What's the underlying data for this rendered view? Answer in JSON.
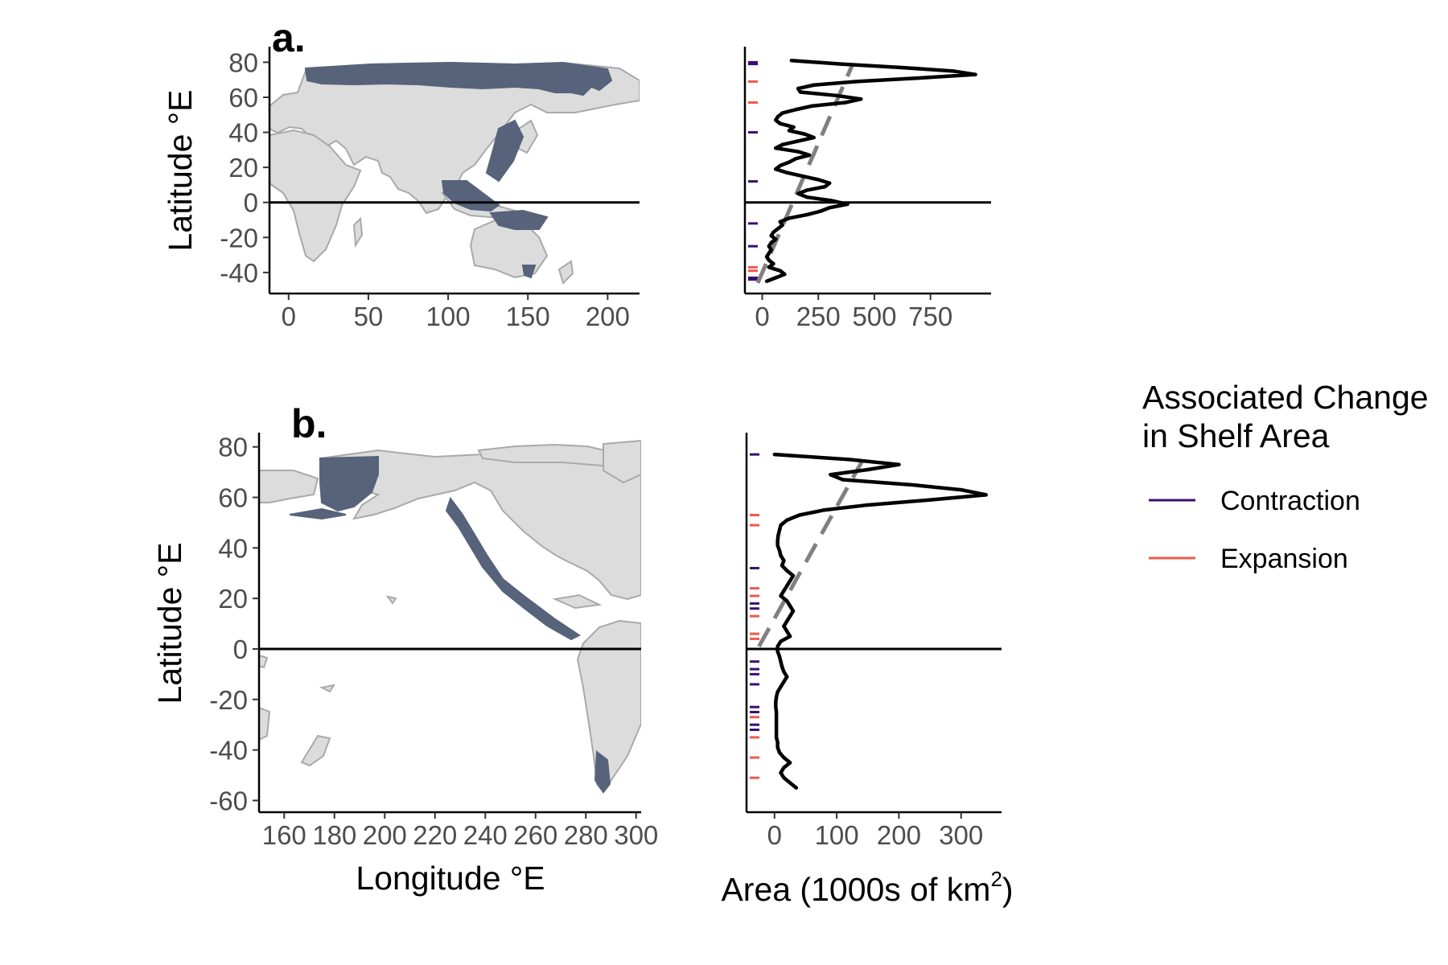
{
  "colors": {
    "shelf": "#57637a",
    "land": "#dcdcdc",
    "border": "#a9a9a9",
    "profile": "#000000",
    "trend": "#808080",
    "contraction": "#3b0f70",
    "expansion": "#ef5a4b"
  },
  "legend": {
    "title_line1": "Associated Change",
    "title_line2": "in Shelf Area",
    "items": [
      {
        "key": "contraction",
        "label": "Contraction"
      },
      {
        "key": "expansion",
        "label": "Expansion"
      }
    ]
  },
  "chart_data": [
    {
      "id": "a-map",
      "type": "map",
      "panel_label": "a.",
      "ylabel": "Latitude °E",
      "xlabel": "",
      "xlim": [
        -12,
        220
      ],
      "ylim": [
        -52,
        88
      ],
      "xticks": [
        0,
        50,
        100,
        150,
        200
      ],
      "yticks": [
        80,
        60,
        40,
        20,
        0,
        -20,
        -40
      ],
      "ytick_labels": [
        "80",
        "60",
        "40",
        "20",
        "0",
        "-20",
        "-40"
      ],
      "xtick_labels": [
        "0",
        "50",
        "100",
        "150",
        "200"
      ],
      "reference_line_y": 0
    },
    {
      "id": "a-profile",
      "type": "line",
      "xlabel": "",
      "xlim": [
        -70,
        1020
      ],
      "ylim": [
        -52,
        88
      ],
      "xticks": [
        0,
        250,
        500,
        750
      ],
      "xtick_labels": [
        "0",
        "250",
        "500",
        "750"
      ],
      "reference_line_y": 0,
      "profile": {
        "lat": [
          81,
          79,
          77,
          75,
          73,
          71,
          69,
          67,
          65,
          63,
          61,
          59,
          57,
          55,
          53,
          51,
          49,
          47,
          45,
          43,
          41,
          39,
          37,
          35,
          33,
          31,
          29,
          27,
          25,
          23,
          21,
          19,
          17,
          15,
          13,
          11,
          9,
          7,
          5,
          3,
          1,
          -1,
          -3,
          -5,
          -7,
          -9,
          -11,
          -13,
          -15,
          -17,
          -19,
          -21,
          -23,
          -25,
          -27,
          -29,
          -31,
          -33,
          -35,
          -37,
          -39,
          -41,
          -43,
          -45
        ],
        "area": [
          130,
          350,
          620,
          850,
          950,
          700,
          420,
          230,
          160,
          170,
          330,
          440,
          370,
          220,
          150,
          90,
          70,
          60,
          80,
          140,
          120,
          190,
          230,
          160,
          90,
          60,
          160,
          210,
          150,
          120,
          80,
          60,
          110,
          180,
          250,
          300,
          280,
          200,
          160,
          200,
          310,
          380,
          300,
          260,
          200,
          120,
          80,
          90,
          70,
          50,
          40,
          60,
          40,
          30,
          40,
          30,
          20,
          30,
          50,
          30,
          80,
          100,
          60,
          20
        ]
      },
      "trend": {
        "lat": [
          -46,
          78
        ],
        "area": [
          -20,
          400
        ]
      },
      "changes": [
        {
          "lat": 80,
          "type": "contraction"
        },
        {
          "lat": 79,
          "type": "contraction"
        },
        {
          "lat": 69,
          "type": "expansion"
        },
        {
          "lat": 57,
          "type": "expansion"
        },
        {
          "lat": 40,
          "type": "contraction"
        },
        {
          "lat": 12,
          "type": "contraction"
        },
        {
          "lat": -12,
          "type": "contraction"
        },
        {
          "lat": -25,
          "type": "contraction"
        },
        {
          "lat": -37,
          "type": "expansion"
        },
        {
          "lat": -39,
          "type": "expansion"
        },
        {
          "lat": -43,
          "type": "contraction"
        },
        {
          "lat": -44,
          "type": "contraction"
        }
      ]
    },
    {
      "id": "b-map",
      "type": "map",
      "panel_label": "b.",
      "ylabel": "Latitude °E",
      "xlabel": "Longitude °E",
      "xlim": [
        150,
        302
      ],
      "ylim": [
        -64,
        85
      ],
      "xticks": [
        160,
        180,
        200,
        220,
        240,
        260,
        280,
        300
      ],
      "xtick_labels": [
        "160",
        "180",
        "200",
        "220",
        "240",
        "260",
        "280",
        "300"
      ],
      "yticks": [
        80,
        60,
        40,
        20,
        0,
        -20,
        -40,
        -60
      ],
      "ytick_labels": [
        "80",
        "60",
        "40",
        "20",
        "0",
        "-20",
        "-40",
        "-60"
      ],
      "reference_line_y": 0
    },
    {
      "id": "b-profile",
      "type": "line",
      "xlabel_main": "Area (1000s of km",
      "xlabel_sup": "2",
      "xlabel_end": ")",
      "xlim": [
        -45,
        365
      ],
      "ylim": [
        -64,
        85
      ],
      "xticks": [
        0,
        100,
        200,
        300
      ],
      "xtick_labels": [
        "0",
        "100",
        "200",
        "300"
      ],
      "reference_line_y": 0,
      "profile": {
        "lat": [
          77,
          75,
          73,
          71,
          69,
          67,
          65,
          63,
          61,
          59,
          57,
          55,
          53,
          51,
          49,
          47,
          45,
          43,
          41,
          39,
          37,
          35,
          33,
          31,
          29,
          27,
          25,
          23,
          21,
          19,
          17,
          15,
          13,
          11,
          9,
          7,
          5,
          3,
          1,
          -1,
          -3,
          -5,
          -7,
          -9,
          -11,
          -13,
          -15,
          -17,
          -19,
          -21,
          -23,
          -25,
          -27,
          -29,
          -31,
          -33,
          -35,
          -37,
          -39,
          -41,
          -43,
          -45,
          -47,
          -49,
          -51,
          -53,
          -55
        ],
        "area": [
          0,
          120,
          200,
          150,
          90,
          110,
          220,
          300,
          340,
          250,
          150,
          80,
          40,
          20,
          10,
          8,
          6,
          5,
          5,
          8,
          10,
          15,
          12,
          20,
          30,
          25,
          20,
          15,
          10,
          20,
          25,
          30,
          25,
          20,
          15,
          20,
          25,
          10,
          5,
          5,
          8,
          10,
          12,
          15,
          20,
          15,
          10,
          5,
          3,
          2,
          2,
          3,
          3,
          3,
          3,
          3,
          3,
          5,
          5,
          8,
          15,
          25,
          15,
          10,
          15,
          25,
          35
        ]
      },
      "trend": {
        "lat": [
          1,
          74
        ],
        "area": [
          -25,
          140
        ]
      },
      "changes": [
        {
          "lat": 77,
          "type": "contraction"
        },
        {
          "lat": 53,
          "type": "expansion"
        },
        {
          "lat": 49,
          "type": "expansion"
        },
        {
          "lat": 32,
          "type": "contraction"
        },
        {
          "lat": 24,
          "type": "expansion"
        },
        {
          "lat": 21,
          "type": "expansion"
        },
        {
          "lat": 18,
          "type": "contraction"
        },
        {
          "lat": 16,
          "type": "contraction"
        },
        {
          "lat": 13,
          "type": "expansion"
        },
        {
          "lat": 6,
          "type": "expansion"
        },
        {
          "lat": 4,
          "type": "expansion"
        },
        {
          "lat": -5,
          "type": "contraction"
        },
        {
          "lat": -8,
          "type": "contraction"
        },
        {
          "lat": -10,
          "type": "contraction"
        },
        {
          "lat": -14,
          "type": "contraction"
        },
        {
          "lat": -23,
          "type": "contraction"
        },
        {
          "lat": -25,
          "type": "contraction"
        },
        {
          "lat": -27,
          "type": "expansion"
        },
        {
          "lat": -30,
          "type": "contraction"
        },
        {
          "lat": -32,
          "type": "contraction"
        },
        {
          "lat": -35,
          "type": "expansion"
        },
        {
          "lat": -43,
          "type": "expansion"
        },
        {
          "lat": -51,
          "type": "expansion"
        }
      ]
    }
  ]
}
